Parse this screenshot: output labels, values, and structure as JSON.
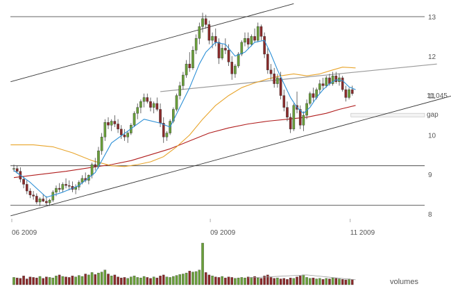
{
  "chart_data": {
    "type": "candlestick",
    "title": "",
    "xlabel": "",
    "ylabel": "",
    "ylim": [
      7.85,
      13.2
    ],
    "yticks": [
      8,
      9,
      10,
      11,
      12,
      13
    ],
    "xticks": [
      {
        "t": 0,
        "label": "06 2009"
      },
      {
        "t": 61,
        "label": "09 2009"
      },
      {
        "t": 104,
        "label": "11 2009"
      }
    ],
    "last_price_label": "11,045",
    "gap_label": "gap",
    "volume_label": "volumes",
    "horizontal_lines": [
      13,
      9.22,
      8.22
    ],
    "gap_zone": [
      10.46,
      10.55
    ],
    "trendlines": [
      {
        "name": "upper-channel",
        "x1": -1,
        "y1": 11.35,
        "x2": 86,
        "y2": 13.33,
        "color": "#333333"
      },
      {
        "name": "lower-channel",
        "x1": -1,
        "y1": 7.95,
        "x2": 138,
        "y2": 11.07,
        "color": "#333333"
      },
      {
        "name": "resistance",
        "x1": 45,
        "y1": 11.1,
        "x2": 130,
        "y2": 11.8,
        "color": "#999999"
      }
    ],
    "colors": {
      "up": "#6aa03a",
      "down": "#8b2a2a",
      "ma_short": "#2b8fd6",
      "ma_mid": "#e8a42a",
      "ma_long": "#b01c1c",
      "grid": "#333333",
      "volume_trend": "#999999"
    },
    "ohlc": [
      [
        9.15,
        9.25,
        9.07,
        9.15
      ],
      [
        9.15,
        9.23,
        9.02,
        9.08
      ],
      [
        9.08,
        9.18,
        8.8,
        8.88
      ],
      [
        8.88,
        8.95,
        8.65,
        8.75
      ],
      [
        8.75,
        8.85,
        8.5,
        8.58
      ],
      [
        8.58,
        8.65,
        8.4,
        8.48
      ],
      [
        8.48,
        8.58,
        8.36,
        8.45
      ],
      [
        8.45,
        8.52,
        8.25,
        8.3
      ],
      [
        8.3,
        8.42,
        8.2,
        8.38
      ],
      [
        8.38,
        8.5,
        8.3,
        8.32
      ],
      [
        8.32,
        8.45,
        8.22,
        8.28
      ],
      [
        8.28,
        8.38,
        8.2,
        8.35
      ],
      [
        8.35,
        8.6,
        8.3,
        8.55
      ],
      [
        8.55,
        8.72,
        8.45,
        8.65
      ],
      [
        8.65,
        8.78,
        8.55,
        8.62
      ],
      [
        8.62,
        8.8,
        8.55,
        8.75
      ],
      [
        8.75,
        8.9,
        8.65,
        8.72
      ],
      [
        8.72,
        8.85,
        8.6,
        8.7
      ],
      [
        8.7,
        8.82,
        8.55,
        8.62
      ],
      [
        8.62,
        8.75,
        8.5,
        8.68
      ],
      [
        8.68,
        8.85,
        8.6,
        8.8
      ],
      [
        8.8,
        8.98,
        8.75,
        8.9
      ],
      [
        8.9,
        9.05,
        8.8,
        8.85
      ],
      [
        8.85,
        9.0,
        8.75,
        8.98
      ],
      [
        8.98,
        9.3,
        8.9,
        9.25
      ],
      [
        9.25,
        9.42,
        9.1,
        9.2
      ],
      [
        9.2,
        9.7,
        9.15,
        9.6
      ],
      [
        9.6,
        10.05,
        9.5,
        9.95
      ],
      [
        9.95,
        10.4,
        9.85,
        10.32
      ],
      [
        10.32,
        10.45,
        10.15,
        10.25
      ],
      [
        10.25,
        10.4,
        10.1,
        10.35
      ],
      [
        10.35,
        10.5,
        10.2,
        10.28
      ],
      [
        10.28,
        10.4,
        10.05,
        10.15
      ],
      [
        10.15,
        10.25,
        9.9,
        10.0
      ],
      [
        10.0,
        10.15,
        9.85,
        9.95
      ],
      [
        9.95,
        10.1,
        9.8,
        10.05
      ],
      [
        10.05,
        10.3,
        10.0,
        10.25
      ],
      [
        10.25,
        10.6,
        10.2,
        10.55
      ],
      [
        10.55,
        10.8,
        10.4,
        10.7
      ],
      [
        10.7,
        10.9,
        10.55,
        10.85
      ],
      [
        10.85,
        11.05,
        10.7,
        10.95
      ],
      [
        10.95,
        11.05,
        10.8,
        10.85
      ],
      [
        10.85,
        10.95,
        10.6,
        10.7
      ],
      [
        10.7,
        10.85,
        10.55,
        10.8
      ],
      [
        10.8,
        10.95,
        10.6,
        10.65
      ],
      [
        10.65,
        10.8,
        10.2,
        10.3
      ],
      [
        10.3,
        10.45,
        9.8,
        9.95
      ],
      [
        9.95,
        10.1,
        9.85,
        10.05
      ],
      [
        10.05,
        10.4,
        10.0,
        10.35
      ],
      [
        10.35,
        10.7,
        10.3,
        10.65
      ],
      [
        10.65,
        11.05,
        10.6,
        11.0
      ],
      [
        11.0,
        11.35,
        10.9,
        11.25
      ],
      [
        11.25,
        11.6,
        11.15,
        11.52
      ],
      [
        11.52,
        11.9,
        11.45,
        11.8
      ],
      [
        11.8,
        12.1,
        11.6,
        11.7
      ],
      [
        11.7,
        12.25,
        11.65,
        12.15
      ],
      [
        12.15,
        12.55,
        12.05,
        12.45
      ],
      [
        12.45,
        12.85,
        12.3,
        12.75
      ],
      [
        12.75,
        13.1,
        12.6,
        12.95
      ],
      [
        12.95,
        13.05,
        12.7,
        12.8
      ],
      [
        12.8,
        12.9,
        12.3,
        12.4
      ],
      [
        12.4,
        12.6,
        12.2,
        12.5
      ],
      [
        12.5,
        12.7,
        12.25,
        12.35
      ],
      [
        12.35,
        12.45,
        11.8,
        11.95
      ],
      [
        11.95,
        12.3,
        11.9,
        12.2
      ],
      [
        12.2,
        12.45,
        12.05,
        12.15
      ],
      [
        12.15,
        12.3,
        11.75,
        11.85
      ],
      [
        11.85,
        12.0,
        11.4,
        11.55
      ],
      [
        11.55,
        11.8,
        11.45,
        11.75
      ],
      [
        11.75,
        12.1,
        11.7,
        12.05
      ],
      [
        12.05,
        12.4,
        12.0,
        12.35
      ],
      [
        12.35,
        12.6,
        12.25,
        12.45
      ],
      [
        12.45,
        12.6,
        12.2,
        12.3
      ],
      [
        12.3,
        12.55,
        12.25,
        12.5
      ],
      [
        12.5,
        12.7,
        12.35,
        12.4
      ],
      [
        12.4,
        12.85,
        12.35,
        12.75
      ],
      [
        12.75,
        12.8,
        12.4,
        12.5
      ],
      [
        12.5,
        12.6,
        11.95,
        12.05
      ],
      [
        12.05,
        12.2,
        11.55,
        11.65
      ],
      [
        11.65,
        11.8,
        11.4,
        11.55
      ],
      [
        11.55,
        11.7,
        11.2,
        11.3
      ],
      [
        11.3,
        11.55,
        11.2,
        11.45
      ],
      [
        11.45,
        11.6,
        10.9,
        11.0
      ],
      [
        11.0,
        11.15,
        10.6,
        10.7
      ],
      [
        10.7,
        10.85,
        10.35,
        10.45
      ],
      [
        10.45,
        10.55,
        10.05,
        10.15
      ],
      [
        10.15,
        10.8,
        10.1,
        10.75
      ],
      [
        10.75,
        11.1,
        10.55,
        10.65
      ],
      [
        10.65,
        10.75,
        10.15,
        10.25
      ],
      [
        10.25,
        10.6,
        10.1,
        10.5
      ],
      [
        10.5,
        10.9,
        10.4,
        10.8
      ],
      [
        10.8,
        11.1,
        10.75,
        11.05
      ],
      [
        11.05,
        11.2,
        10.85,
        10.95
      ],
      [
        10.95,
        11.2,
        10.9,
        11.15
      ],
      [
        11.15,
        11.4,
        11.05,
        11.3
      ],
      [
        11.3,
        11.45,
        11.15,
        11.25
      ],
      [
        11.25,
        11.5,
        11.2,
        11.45
      ],
      [
        11.45,
        11.55,
        11.25,
        11.3
      ],
      [
        11.3,
        11.6,
        11.25,
        11.5
      ],
      [
        11.5,
        11.6,
        11.3,
        11.35
      ],
      [
        11.35,
        11.55,
        11.25,
        11.45
      ],
      [
        11.45,
        11.5,
        11.1,
        11.15
      ],
      [
        11.15,
        11.25,
        10.85,
        10.95
      ],
      [
        10.95,
        11.2,
        10.9,
        11.15
      ],
      [
        11.15,
        11.25,
        11.0,
        11.05
      ]
    ],
    "ma_short": [
      [
        0,
        9.1
      ],
      [
        5,
        8.8
      ],
      [
        10,
        8.42
      ],
      [
        15,
        8.55
      ],
      [
        20,
        8.72
      ],
      [
        25,
        9.05
      ],
      [
        30,
        9.8
      ],
      [
        35,
        10.1
      ],
      [
        40,
        10.4
      ],
      [
        45,
        10.3
      ],
      [
        48,
        10.2
      ],
      [
        51,
        10.7
      ],
      [
        54,
        11.2
      ],
      [
        57,
        11.8
      ],
      [
        59,
        12.1
      ],
      [
        62,
        12.35
      ],
      [
        65,
        12.3
      ],
      [
        68,
        12.0
      ],
      [
        71,
        12.1
      ],
      [
        74,
        12.35
      ],
      [
        77,
        12.4
      ],
      [
        79,
        12.05
      ],
      [
        81,
        11.65
      ],
      [
        83,
        11.3
      ],
      [
        85,
        10.95
      ],
      [
        87,
        10.7
      ],
      [
        89,
        10.55
      ],
      [
        91,
        10.7
      ],
      [
        93,
        10.95
      ],
      [
        95,
        11.15
      ],
      [
        97,
        11.3
      ],
      [
        99,
        11.4
      ],
      [
        101,
        11.38
      ],
      [
        103,
        11.22
      ],
      [
        105,
        11.15
      ]
    ],
    "ma_mid": [
      [
        -1,
        9.75
      ],
      [
        6,
        9.75
      ],
      [
        12,
        9.7
      ],
      [
        18,
        9.55
      ],
      [
        24,
        9.35
      ],
      [
        30,
        9.22
      ],
      [
        34,
        9.2
      ],
      [
        38,
        9.25
      ],
      [
        42,
        9.32
      ],
      [
        46,
        9.45
      ],
      [
        50,
        9.7
      ],
      [
        54,
        10.0
      ],
      [
        58,
        10.4
      ],
      [
        62,
        10.75
      ],
      [
        66,
        11.0
      ],
      [
        70,
        11.2
      ],
      [
        74,
        11.32
      ],
      [
        78,
        11.42
      ],
      [
        82,
        11.5
      ],
      [
        86,
        11.55
      ],
      [
        90,
        11.5
      ],
      [
        94,
        11.55
      ],
      [
        98,
        11.65
      ],
      [
        101,
        11.72
      ],
      [
        105,
        11.7
      ]
    ],
    "ma_long": [
      [
        0,
        8.92
      ],
      [
        8,
        9.0
      ],
      [
        16,
        9.08
      ],
      [
        24,
        9.18
      ],
      [
        30,
        9.25
      ],
      [
        36,
        9.35
      ],
      [
        42,
        9.5
      ],
      [
        48,
        9.65
      ],
      [
        54,
        9.85
      ],
      [
        60,
        10.05
      ],
      [
        66,
        10.18
      ],
      [
        72,
        10.28
      ],
      [
        78,
        10.35
      ],
      [
        84,
        10.4
      ],
      [
        90,
        10.45
      ],
      [
        96,
        10.55
      ],
      [
        100,
        10.65
      ],
      [
        105,
        10.75
      ]
    ],
    "volume": [
      15,
      14,
      13,
      18,
      12,
      16,
      15,
      14,
      17,
      13,
      16,
      15,
      14,
      18,
      20,
      17,
      16,
      15,
      18,
      16,
      19,
      17,
      22,
      20,
      25,
      21,
      24,
      26,
      30,
      22,
      18,
      20,
      16,
      14,
      15,
      13,
      16,
      18,
      15,
      14,
      17,
      15,
      13,
      16,
      14,
      18,
      20,
      16,
      15,
      17,
      19,
      21,
      22,
      24,
      28,
      26,
      27,
      30,
      85,
      25,
      20,
      18,
      16,
      15,
      17,
      14,
      16,
      15,
      13,
      14,
      15,
      14,
      16,
      15,
      17,
      14,
      13,
      18,
      20,
      15,
      13,
      14,
      12,
      13,
      11,
      14,
      13,
      16,
      18,
      20,
      15,
      13,
      14,
      12,
      13,
      11,
      13,
      12,
      14,
      13,
      12,
      11,
      10,
      12,
      11
    ],
    "volume_trend": [
      [
        72,
        14
      ],
      [
        90,
        20
      ],
      [
        105,
        10
      ]
    ]
  }
}
